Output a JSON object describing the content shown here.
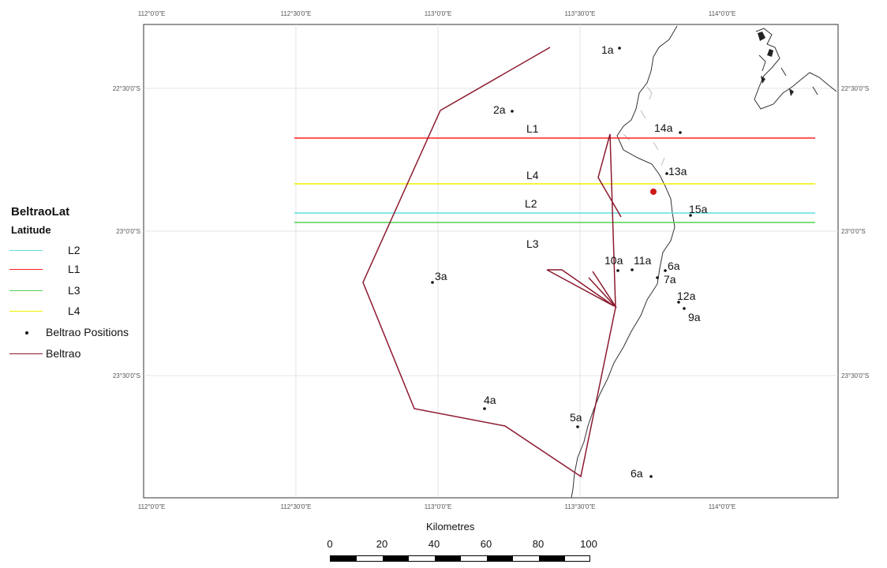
{
  "map": {
    "top_longitude_labels": [
      "112°0'0\"E",
      "112°30'0\"E",
      "113°0'0\"E",
      "113°30'0\"E",
      "114°0'0\"E"
    ],
    "bottom_longitude_labels": [
      "112°0'0\"E",
      "112°30'0\"E",
      "113°0'0\"E",
      "113°30'0\"E",
      "114°0'0\"E"
    ],
    "left_latitude_labels": [
      "22°30'0\"S",
      "23°0'0\"S",
      "23°30'0\"S"
    ],
    "right_latitude_labels": [
      "22°30'0\"S",
      "23°0'0\"S",
      "23°30'0\"S"
    ],
    "colors": {
      "L1": "#ff2020",
      "L2": "#5fe0e0",
      "L3": "#55d055",
      "L4": "#f0f000",
      "route": "#8b1a2e",
      "coast": "#333333",
      "grid": "#dddddd",
      "marker": "#cc1a1a"
    },
    "line_labels": {
      "L1": "L1",
      "L4": "L4",
      "L2": "L2",
      "L3": "L3"
    },
    "positions": [
      {
        "label": "1a"
      },
      {
        "label": "2a"
      },
      {
        "label": "14a"
      },
      {
        "label": "13a"
      },
      {
        "label": "15a"
      },
      {
        "label": "10a"
      },
      {
        "label": "11a"
      },
      {
        "label": "6a"
      },
      {
        "label": "7a"
      },
      {
        "label": "12a"
      },
      {
        "label": "9a"
      },
      {
        "label": "3a"
      },
      {
        "label": "4a"
      },
      {
        "label": "5a"
      },
      {
        "label": "6a"
      }
    ]
  },
  "legend": {
    "title": "BeltraoLat",
    "subtitle": "Latitude",
    "items": [
      {
        "label": "L2",
        "color": "#5fe0e0"
      },
      {
        "label": "L1",
        "color": "#ff2020"
      },
      {
        "label": "L3",
        "color": "#55d055"
      },
      {
        "label": "L4",
        "color": "#f0f000"
      }
    ],
    "positions_label": "Beltrao Positions",
    "route_label": "Beltrao",
    "route_color": "#8b1a2e"
  },
  "scale": {
    "title": "Kilometres",
    "ticks": [
      "0",
      "20",
      "40",
      "60",
      "80",
      "100"
    ]
  }
}
